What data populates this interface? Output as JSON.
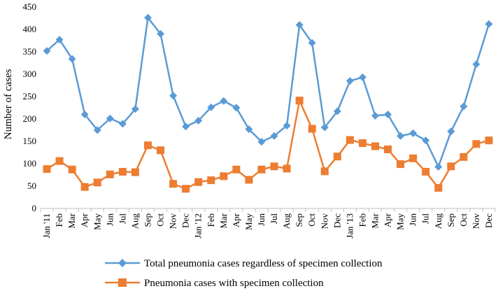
{
  "chart_data": {
    "type": "line",
    "title": "",
    "xlabel": "",
    "ylabel": "Number of cases",
    "ylim": [
      0,
      450
    ],
    "yticks": [
      0,
      50,
      100,
      150,
      200,
      250,
      300,
      350,
      400,
      450
    ],
    "grid": false,
    "legend_position": "bottom",
    "categories": [
      "Jan '11",
      "Feb",
      "Mar",
      "Apr",
      "May",
      "Jun",
      "Jul",
      "Aug",
      "Sep",
      "Oct",
      "Nov",
      "Dec",
      "Jan '12",
      "Feb",
      "Mar",
      "Apr",
      "May",
      "Jun",
      "Jul",
      "Aug",
      "Sep",
      "Oct",
      "Nov",
      "Dec",
      "Jan '13",
      "Feb",
      "Mar",
      "Apr",
      "May",
      "Jun",
      "Jul",
      "Aug",
      "Sep",
      "Oct",
      "Nov",
      "Dec"
    ],
    "series": [
      {
        "name": "Total pneumonia cases regardless of specimen collection",
        "color": "#5B9BD5",
        "marker": "diamond",
        "values": [
          352,
          377,
          334,
          210,
          175,
          201,
          189,
          222,
          426,
          390,
          252,
          183,
          196,
          226,
          240,
          225,
          177,
          149,
          162,
          185,
          410,
          370,
          181,
          217,
          285,
          293,
          207,
          210,
          162,
          168,
          152,
          93,
          172,
          228,
          322,
          412
        ]
      },
      {
        "name": "Pneumonia cases with specimen collection",
        "color": "#ED7D31",
        "marker": "square",
        "values": [
          88,
          106,
          87,
          48,
          58,
          76,
          82,
          81,
          141,
          130,
          55,
          44,
          59,
          63,
          72,
          87,
          64,
          87,
          94,
          89,
          241,
          178,
          83,
          116,
          153,
          146,
          139,
          132,
          99,
          112,
          82,
          46,
          94,
          115,
          144,
          152
        ]
      }
    ]
  }
}
